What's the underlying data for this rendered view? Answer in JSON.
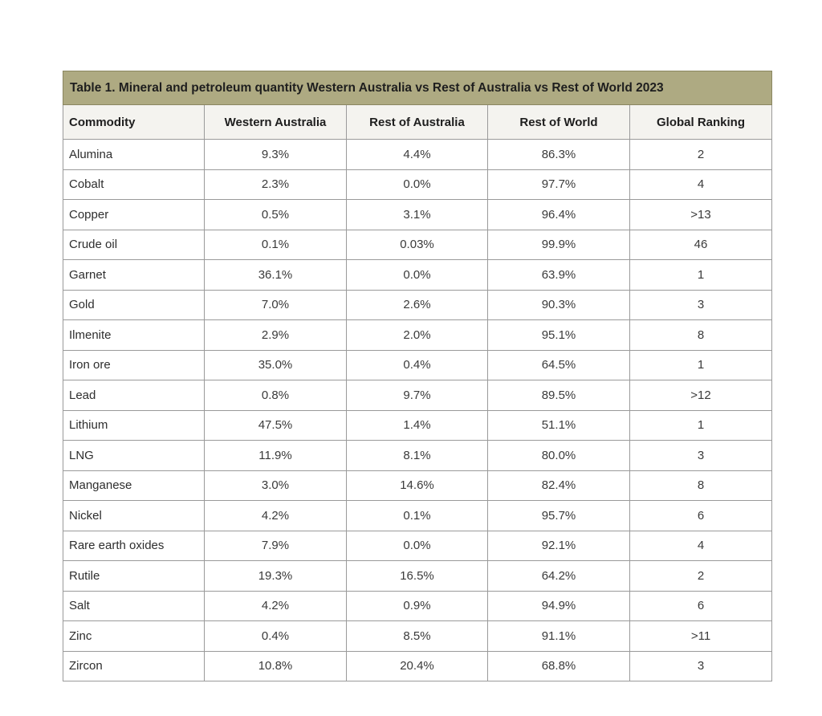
{
  "table": {
    "title": "Table 1. Mineral and petroleum quantity Western Australia vs Rest of Australia vs Rest of World 2023",
    "headers": [
      "Commodity",
      "Western Australia",
      "Rest of Australia",
      "Rest of World",
      "Global Ranking"
    ],
    "rows": [
      [
        "Alumina",
        "9.3%",
        "4.4%",
        "86.3%",
        "2"
      ],
      [
        "Cobalt",
        "2.3%",
        "0.0%",
        "97.7%",
        "4"
      ],
      [
        "Copper",
        "0.5%",
        "3.1%",
        "96.4%",
        ">13"
      ],
      [
        "Crude oil",
        "0.1%",
        "0.03%",
        "99.9%",
        "46"
      ],
      [
        "Garnet",
        "36.1%",
        "0.0%",
        "63.9%",
        "1"
      ],
      [
        "Gold",
        "7.0%",
        "2.6%",
        "90.3%",
        "3"
      ],
      [
        "Ilmenite",
        "2.9%",
        "2.0%",
        "95.1%",
        "8"
      ],
      [
        "Iron ore",
        "35.0%",
        "0.4%",
        "64.5%",
        "1"
      ],
      [
        "Lead",
        "0.8%",
        "9.7%",
        "89.5%",
        ">12"
      ],
      [
        "Lithium",
        "47.5%",
        "1.4%",
        "51.1%",
        "1"
      ],
      [
        "LNG",
        "11.9%",
        "8.1%",
        "80.0%",
        "3"
      ],
      [
        "Manganese",
        "3.0%",
        "14.6%",
        "82.4%",
        "8"
      ],
      [
        "Nickel",
        "4.2%",
        "0.1%",
        "95.7%",
        "6"
      ],
      [
        "Rare earth oxides",
        "7.9%",
        "0.0%",
        "92.1%",
        "4"
      ],
      [
        "Rutile",
        "19.3%",
        "16.5%",
        "64.2%",
        "2"
      ],
      [
        "Salt",
        "4.2%",
        "0.9%",
        "94.9%",
        "6"
      ],
      [
        "Zinc",
        "0.4%",
        "8.5%",
        "91.1%",
        ">11"
      ],
      [
        "Zircon",
        "10.8%",
        "20.4%",
        "68.8%",
        "3"
      ]
    ]
  },
  "colors": {
    "title_background": "#aeaa82",
    "header_background": "#f4f3ef",
    "border": "#9a9a9a"
  }
}
